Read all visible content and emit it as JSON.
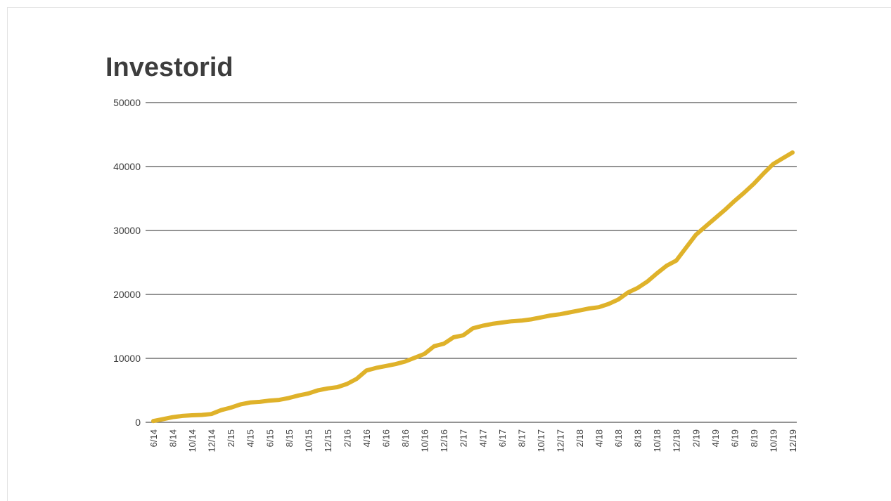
{
  "colors": {
    "series": "#dfb22a",
    "grid": "#555555",
    "title": "#3d3d3d",
    "tick": "#3d3d3d"
  },
  "chart_data": {
    "type": "line",
    "title": "Investorid",
    "xlabel": "",
    "ylabel": "",
    "ylim": [
      0,
      50000
    ],
    "yticks": [
      0,
      10000,
      20000,
      30000,
      40000,
      50000
    ],
    "grid": true,
    "legend": "none",
    "x_tick_labels": [
      "6/14",
      "8/14",
      "10/14",
      "12/14",
      "2/15",
      "4/15",
      "6/15",
      "8/15",
      "10/15",
      "12/15",
      "2/16",
      "4/16",
      "6/16",
      "8/16",
      "10/16",
      "12/16",
      "2/17",
      "4/17",
      "6/17",
      "8/17",
      "10/17",
      "12/17",
      "2/18",
      "4/18",
      "6/18",
      "8/18",
      "10/18",
      "12/18",
      "2/19",
      "4/19",
      "6/19",
      "8/19",
      "10/19",
      "12/19"
    ],
    "series": [
      {
        "x": [
          "6/14",
          "7/14",
          "8/14",
          "9/14",
          "10/14",
          "11/14",
          "12/14",
          "1/15",
          "2/15",
          "3/15",
          "4/15",
          "5/15",
          "6/15",
          "7/15",
          "8/15",
          "9/15",
          "10/15",
          "11/15",
          "12/15",
          "1/16",
          "2/16",
          "3/16",
          "4/16",
          "5/16",
          "6/16",
          "7/16",
          "8/16",
          "9/16",
          "10/16",
          "11/16",
          "12/16",
          "1/17",
          "2/17",
          "3/17",
          "4/17",
          "5/17",
          "6/17",
          "7/17",
          "8/17",
          "9/17",
          "10/17",
          "11/17",
          "12/17",
          "1/18",
          "2/18",
          "3/18",
          "4/18",
          "5/18",
          "6/18",
          "7/18",
          "8/18",
          "9/18",
          "10/18",
          "11/18",
          "12/18",
          "1/19",
          "2/19",
          "3/19",
          "4/19",
          "5/19",
          "6/19",
          "7/19",
          "8/19",
          "9/19",
          "10/19",
          "11/19",
          "12/19"
        ],
        "values": [
          200,
          500,
          800,
          1000,
          1100,
          1150,
          1300,
          1900,
          2300,
          2800,
          3100,
          3200,
          3400,
          3500,
          3800,
          4200,
          4500,
          5000,
          5300,
          5500,
          6000,
          6800,
          8100,
          8500,
          8800,
          9100,
          9500,
          10100,
          10700,
          11900,
          12300,
          13300,
          13600,
          14700,
          15100,
          15400,
          15600,
          15800,
          15900,
          16100,
          16400,
          16700,
          16900,
          17200,
          17500,
          17800,
          18000,
          18500,
          19200,
          20300,
          21000,
          22000,
          23300,
          24500,
          25300,
          27300,
          29300,
          30600,
          31900,
          33200,
          34600,
          35900,
          37300,
          38900,
          40400,
          41300,
          42200
        ]
      }
    ]
  }
}
